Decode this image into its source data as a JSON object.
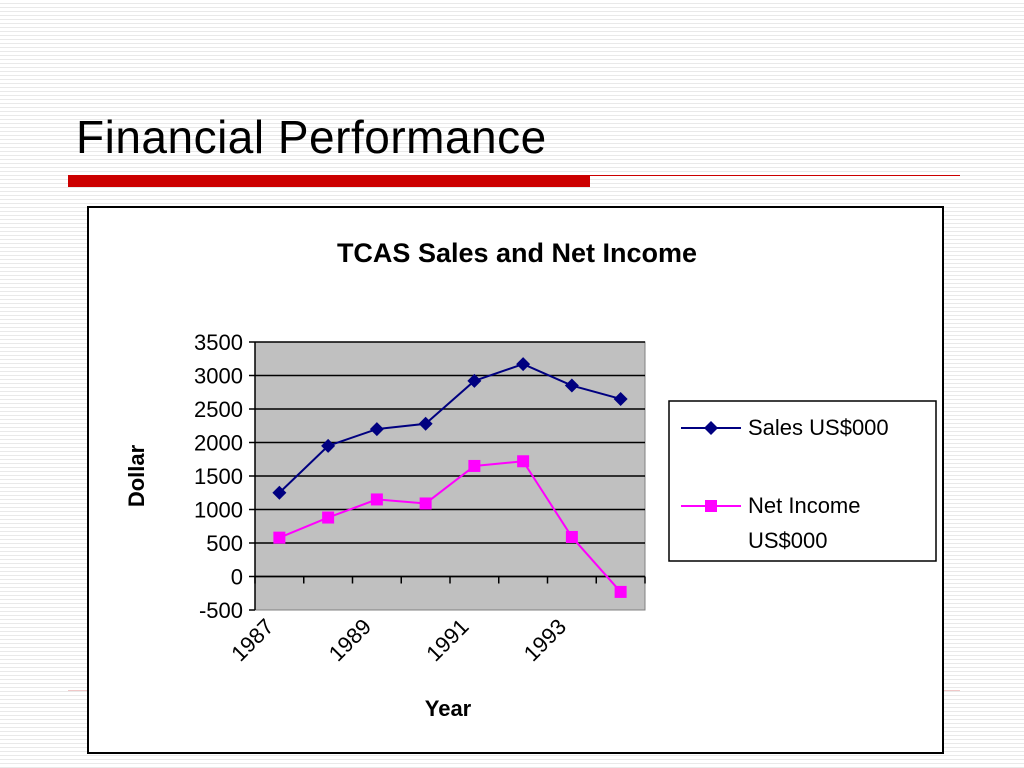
{
  "slide": {
    "title": "Financial Performance"
  },
  "colors": {
    "accent_red": "#cc0000",
    "sales_series": "#000080",
    "net_income_series": "#ff00ff",
    "plot_background": "#c0c0c0"
  },
  "chart_data": {
    "type": "line",
    "title": "TCAS Sales and Net Income",
    "xlabel": "Year",
    "ylabel": "Dollar",
    "categories": [
      "1987",
      "1988",
      "1989",
      "1990",
      "1991",
      "1992",
      "1993",
      "1994"
    ],
    "x_tick_labels": [
      "1987",
      "1989",
      "1991",
      "1993"
    ],
    "y_ticks": [
      "-500",
      "0",
      "500",
      "1000",
      "1500",
      "2000",
      "2500",
      "3000",
      "3500"
    ],
    "ylim": [
      -500,
      3500
    ],
    "grid": true,
    "legend_position": "right",
    "series": [
      {
        "name": "Sales US$000",
        "marker": "diamond",
        "values": [
          1250,
          1950,
          2200,
          2280,
          2920,
          3170,
          2850,
          2650
        ]
      },
      {
        "name": "Net Income US$000",
        "legend_lines": [
          "Net Income",
          "US$000"
        ],
        "marker": "square",
        "values": [
          580,
          880,
          1150,
          1090,
          1650,
          1720,
          590,
          -230
        ]
      }
    ]
  }
}
